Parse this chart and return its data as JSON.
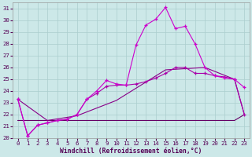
{
  "xlabel": "Windchill (Refroidissement éolien,°C)",
  "bg_color": "#cce8e8",
  "line_color1": "#cc00cc",
  "line_color2": "#aa00aa",
  "line_color3": "#880088",
  "line_color4": "#660066",
  "ylim": [
    20,
    31.5
  ],
  "xlim": [
    -0.5,
    23.5
  ],
  "yticks": [
    20,
    21,
    22,
    23,
    24,
    25,
    26,
    27,
    28,
    29,
    30,
    31
  ],
  "xticks": [
    0,
    1,
    2,
    3,
    4,
    5,
    6,
    7,
    8,
    9,
    10,
    11,
    12,
    13,
    14,
    15,
    16,
    17,
    18,
    19,
    20,
    21,
    22,
    23
  ],
  "s1_x": [
    0,
    1,
    2,
    3,
    4,
    5,
    6,
    7,
    8,
    9,
    10,
    11,
    12,
    13,
    14,
    15,
    16,
    17,
    18,
    19,
    20,
    21,
    22,
    23
  ],
  "s1_y": [
    23.3,
    20.2,
    21.1,
    21.3,
    21.5,
    21.6,
    22.0,
    23.3,
    24.0,
    24.9,
    24.6,
    24.5,
    27.9,
    29.6,
    30.1,
    31.1,
    29.3,
    29.5,
    28.0,
    26.0,
    25.3,
    25.1,
    25.0,
    24.3
  ],
  "s2_x": [
    0,
    1,
    2,
    3,
    4,
    5,
    6,
    7,
    8,
    9,
    10,
    11,
    12,
    13,
    14,
    15,
    16,
    17,
    18,
    19,
    20,
    21,
    22,
    23
  ],
  "s2_y": [
    23.3,
    20.2,
    21.1,
    21.3,
    21.5,
    21.6,
    22.0,
    23.3,
    23.8,
    24.4,
    24.5,
    24.5,
    24.6,
    24.8,
    25.1,
    25.5,
    26.0,
    26.0,
    25.5,
    25.5,
    25.3,
    25.2,
    25.0,
    22.0
  ],
  "s3_x": [
    0,
    3,
    6,
    10,
    15,
    19,
    22,
    23
  ],
  "s3_y": [
    23.3,
    21.5,
    21.9,
    23.2,
    25.8,
    26.0,
    25.0,
    22.0
  ],
  "s4_x": [
    0,
    3,
    6,
    10,
    16,
    22,
    23
  ],
  "s4_y": [
    21.5,
    21.5,
    21.5,
    21.5,
    21.5,
    21.5,
    22.0
  ]
}
